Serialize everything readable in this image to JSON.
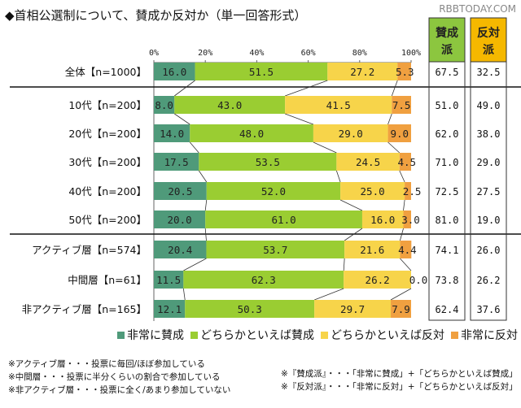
{
  "title": "◆首相公選制について、賛成か反対か（単一回答形式）",
  "watermark": "RBBTODAY.COM",
  "chart_data": {
    "type": "bar",
    "orientation": "horizontal-stacked-100",
    "xlim": [
      0,
      100
    ],
    "xticks": [
      "0%",
      "20%",
      "40%",
      "60%",
      "80%",
      "100%"
    ],
    "categories": [
      "全体【n=1000】",
      "10代【n=200】",
      "20代【n=200】",
      "30代【n=200】",
      "40代【n=200】",
      "50代【n=200】",
      "アクティブ層【n=574】",
      "中間層【n=61】",
      "非アクティブ層【n=165】"
    ],
    "series": [
      {
        "name": "非常に賛成",
        "color": "#4f9a7a",
        "values": [
          16.0,
          8.0,
          14.0,
          17.5,
          20.5,
          20.0,
          20.4,
          11.5,
          12.1
        ]
      },
      {
        "name": "どちらかといえば賛成",
        "color": "#9acd32",
        "values": [
          51.5,
          43.0,
          48.0,
          53.5,
          52.0,
          61.0,
          53.7,
          62.3,
          50.3
        ]
      },
      {
        "name": "どちらかといえば反対",
        "color": "#f7d44a",
        "values": [
          27.2,
          41.5,
          29.0,
          24.5,
          25.0,
          16.0,
          21.6,
          26.2,
          29.7
        ]
      },
      {
        "name": "非常に反対",
        "color": "#f0a040",
        "values": [
          5.3,
          7.5,
          9.0,
          4.5,
          2.5,
          3.0,
          4.4,
          0.0,
          7.9
        ]
      }
    ],
    "summary_columns": [
      {
        "name": "賛成派",
        "color": "#8cc63f",
        "values": [
          "67.5",
          "51.0",
          "62.0",
          "71.0",
          "72.5",
          "81.0",
          "74.1",
          "73.8",
          "62.4"
        ]
      },
      {
        "name": "反対派",
        "color": "#f5b800",
        "values": [
          "32.5",
          "49.0",
          "38.0",
          "29.0",
          "27.5",
          "19.0",
          "26.0",
          "26.2",
          "37.6"
        ]
      }
    ]
  },
  "notes_left": [
    "※アクティブ層・・・投票に毎回/ほぼ参加している",
    "※中間層・・・投票に半分くらいの割合で参加している",
    "※非アクティブ層・・・投票に全く/あまり参加していない"
  ],
  "notes_right": [
    "※『賛成派』・・・「非常に賛成」+「どちらかといえば賛成」",
    "※『反対派』・・・「非常に反対」+「どちらかといえば反対」"
  ]
}
